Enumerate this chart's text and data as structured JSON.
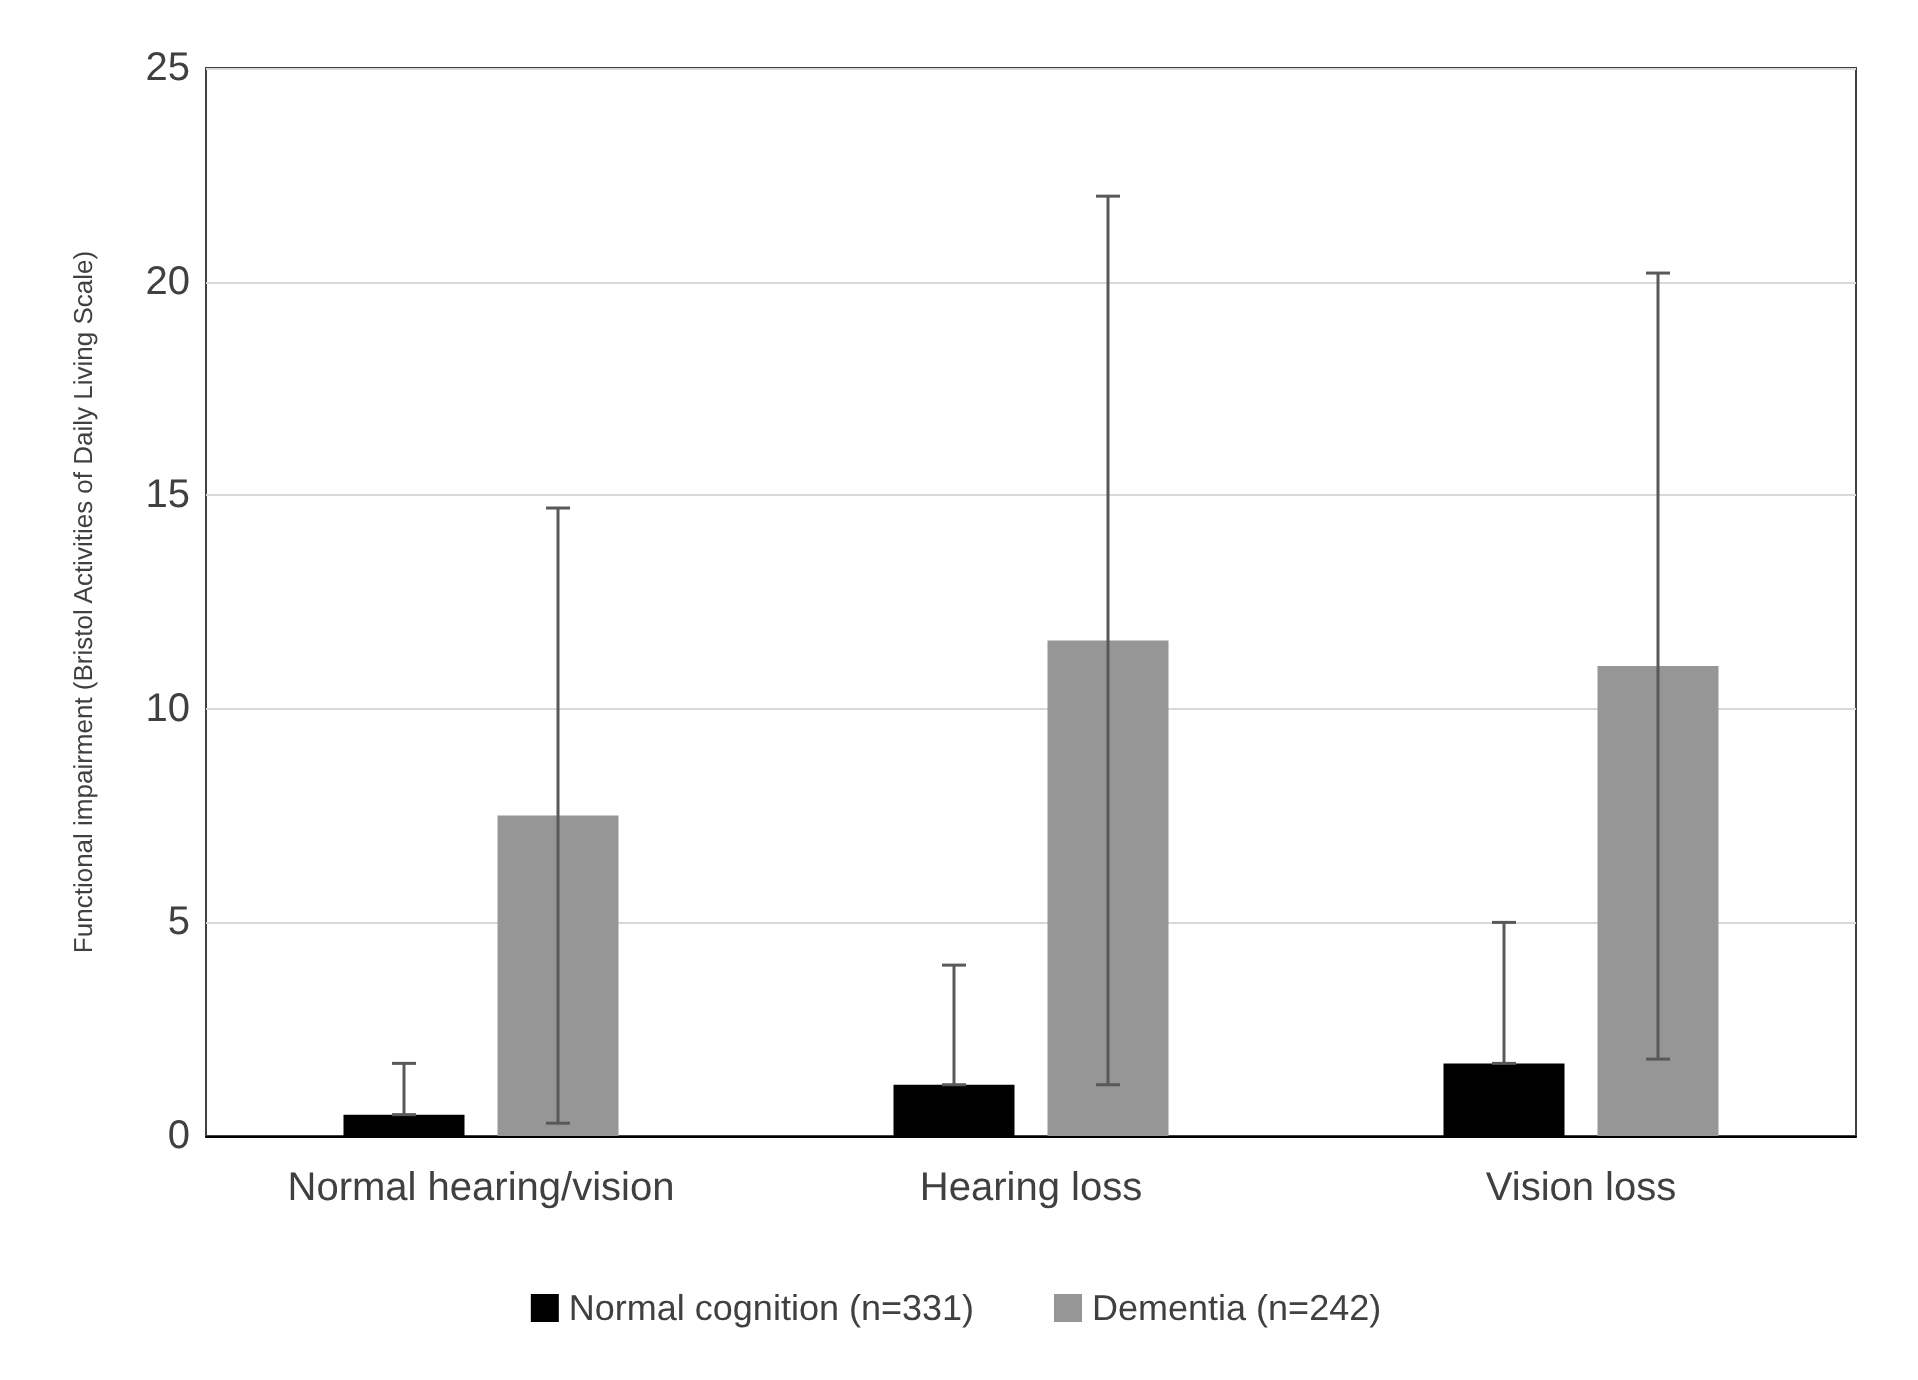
{
  "chart_data": {
    "type": "bar",
    "ylabel": "Functional impairment (Bristol Activities of Daily Living Scale)",
    "categories": [
      "Normal hearing/vision",
      "Hearing loss",
      "Vision loss"
    ],
    "series": [
      {
        "name": "Normal cognition (n=331)",
        "color": "#000000",
        "values": [
          0.5,
          1.2,
          1.7
        ],
        "errors": [
          [
            0.5,
            1.7
          ],
          [
            1.2,
            4.0
          ],
          [
            1.7,
            5.0
          ]
        ]
      },
      {
        "name": "Dementia (n=242)",
        "color": "#969696",
        "values": [
          7.5,
          11.6,
          11.0
        ],
        "errors": [
          7.2,
          10.4,
          9.2
        ]
      }
    ],
    "ylim": [
      0,
      25
    ],
    "yticks": [
      0,
      5,
      10,
      15,
      20,
      25
    ],
    "grid": "y",
    "legend": "bottom"
  }
}
